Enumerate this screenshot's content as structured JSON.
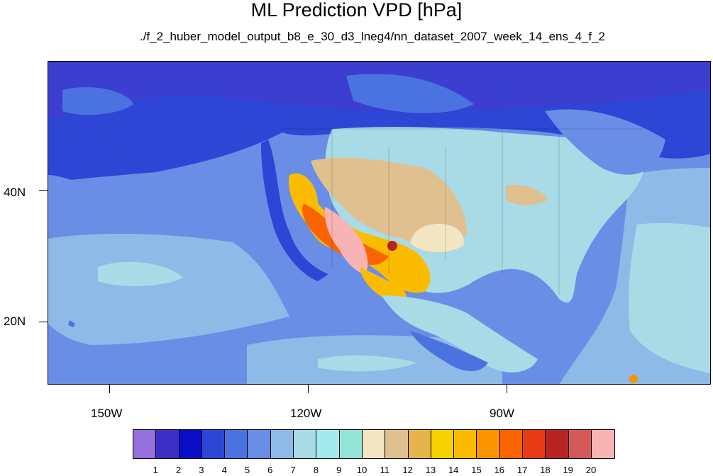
{
  "title": "ML Prediction VPD [hPa]",
  "subtitle": "./f_2_huber_model_output_b8_e_30_d3_lneg4/nn_dataset_2007_week_14_ens_4_f_2",
  "axes": {
    "lat_labels": [
      "40N",
      "20N"
    ],
    "lon_labels": [
      "150W",
      "120W",
      "90W"
    ]
  },
  "colorbar": {
    "labels": [
      "1",
      "2",
      "3",
      "4",
      "5",
      "6",
      "7",
      "8",
      "9",
      "10",
      "11",
      "12",
      "13",
      "14",
      "15",
      "16",
      "17",
      "18",
      "19",
      "20"
    ],
    "colors": [
      "#9370db",
      "#3c2fc8",
      "#0a0ec8",
      "#2d46d6",
      "#4a72e0",
      "#6a8ee6",
      "#8fbae8",
      "#a8dbe6",
      "#a2eaee",
      "#92e6d8",
      "#f3e4c2",
      "#e0c08e",
      "#e6b44c",
      "#f8d200",
      "#fbbc00",
      "#fa9400",
      "#fa6400",
      "#e83a14",
      "#b82424",
      "#d45a5a",
      "#f8b4b4"
    ]
  },
  "colors": {
    "ocean_deep": "#2d46d6",
    "ocean_mid": "#4a72e0",
    "ocean_light": "#6a8ee6",
    "tropic": "#8fbae8",
    "land_humid": "#a8dbe6",
    "desert": "#f8b4b4",
    "hot": "#fbbc00",
    "warm": "#e0c08e"
  }
}
